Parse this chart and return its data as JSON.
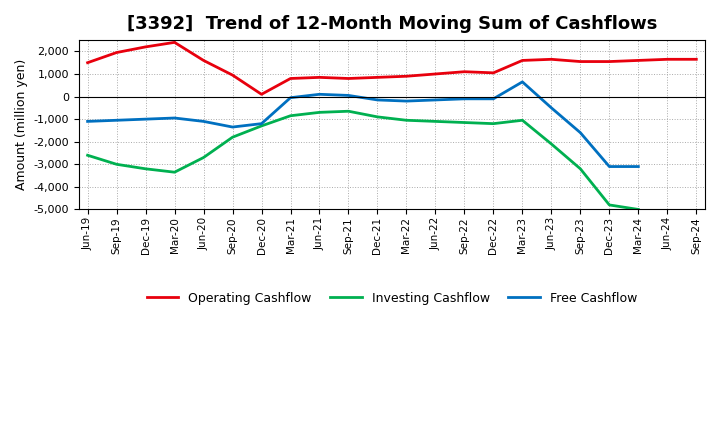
{
  "title": "[3392]  Trend of 12-Month Moving Sum of Cashflows",
  "ylabel": "Amount (million yen)",
  "xlabels": [
    "Jun-19",
    "Sep-19",
    "Dec-19",
    "Mar-20",
    "Jun-20",
    "Sep-20",
    "Dec-20",
    "Mar-21",
    "Jun-21",
    "Sep-21",
    "Dec-21",
    "Mar-22",
    "Jun-22",
    "Sep-22",
    "Dec-22",
    "Mar-23",
    "Jun-23",
    "Sep-23",
    "Dec-23",
    "Mar-24",
    "Jun-24",
    "Sep-24"
  ],
  "operating": [
    1500,
    1950,
    2200,
    2400,
    1600,
    950,
    100,
    800,
    850,
    800,
    850,
    900,
    1000,
    1100,
    1050,
    1600,
    1650,
    1550,
    1550,
    1600,
    1650,
    1650
  ],
  "investing": [
    -2600,
    -3000,
    -3200,
    -3350,
    -2700,
    -1800,
    -1300,
    -850,
    -700,
    -650,
    -900,
    -1050,
    -1100,
    -1150,
    -1200,
    -1050,
    -2100,
    -3200,
    -4800,
    -5000,
    null,
    null
  ],
  "free": [
    -1100,
    -1050,
    -1000,
    -950,
    -1100,
    -1350,
    -1200,
    -50,
    100,
    50,
    -150,
    -200,
    -150,
    -100,
    -100,
    650,
    -500,
    -1600,
    -3100,
    -3100,
    null,
    null
  ],
  "operating_color": "#e8000d",
  "investing_color": "#00b050",
  "free_color": "#0070c0",
  "ylim": [
    -5000,
    2500
  ],
  "yticks": [
    -5000,
    -4000,
    -3000,
    -2000,
    -1000,
    0,
    1000,
    2000
  ],
  "bg_color": "#ffffff",
  "grid_color": "#aaaaaa",
  "legend_labels": [
    "Operating Cashflow",
    "Investing Cashflow",
    "Free Cashflow"
  ]
}
